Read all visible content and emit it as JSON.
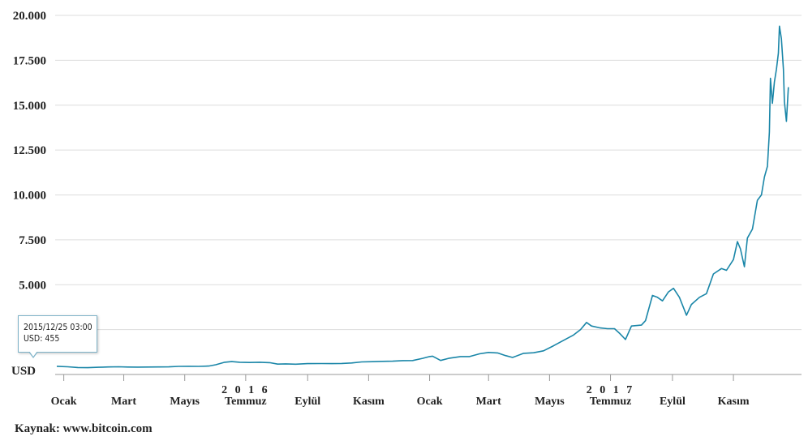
{
  "chart_data": {
    "type": "line",
    "unit": "USD",
    "ylim": [
      0,
      20000
    ],
    "yticks": [
      {
        "value": 0,
        "label": ""
      },
      {
        "value": 2500,
        "label": ""
      },
      {
        "value": 5000,
        "label": "5.000"
      },
      {
        "value": 7500,
        "label": "7.500"
      },
      {
        "value": 10000,
        "label": "10.000"
      },
      {
        "value": 12500,
        "label": "12.500"
      },
      {
        "value": 15000,
        "label": "15.000"
      },
      {
        "value": 17500,
        "label": "17.500"
      },
      {
        "value": 20000,
        "label": "20.000"
      }
    ],
    "xlim": [
      "2015-12-25",
      "2017-12-31"
    ],
    "xticks": [
      {
        "date": "2016-01-01",
        "label": "Ocak"
      },
      {
        "date": "2016-03-01",
        "label": "Mart"
      },
      {
        "date": "2016-05-01",
        "label": "Mayıs"
      },
      {
        "date": "2016-07-01",
        "label": "Temmuz"
      },
      {
        "date": "2016-09-01",
        "label": "Eylül"
      },
      {
        "date": "2016-11-01",
        "label": "Kasım"
      },
      {
        "date": "2017-01-01",
        "label": "Ocak"
      },
      {
        "date": "2017-03-01",
        "label": "Mart"
      },
      {
        "date": "2017-05-01",
        "label": "Mayıs"
      },
      {
        "date": "2017-07-01",
        "label": "Temmuz"
      },
      {
        "date": "2017-09-01",
        "label": "Eylül"
      },
      {
        "date": "2017-11-01",
        "label": "Kasım"
      }
    ],
    "year_labels": [
      {
        "date": "2016-07-01",
        "label": "2 0 1 6"
      },
      {
        "date": "2017-07-01",
        "label": "2 0 1 7"
      }
    ],
    "grid": true,
    "line_color": "#1a86a8",
    "series": [
      {
        "x": [
          "2015-12-25",
          "2016-01-05",
          "2016-01-15",
          "2016-01-25",
          "2016-02-05",
          "2016-02-15",
          "2016-02-25",
          "2016-03-05",
          "2016-03-15",
          "2016-03-25",
          "2016-04-05",
          "2016-04-15",
          "2016-04-25",
          "2016-05-05",
          "2016-05-15",
          "2016-05-25",
          "2016-06-01",
          "2016-06-10",
          "2016-06-17",
          "2016-06-25",
          "2016-07-05",
          "2016-07-15",
          "2016-07-25",
          "2016-08-02",
          "2016-08-10",
          "2016-08-20",
          "2016-09-01",
          "2016-09-15",
          "2016-09-25",
          "2016-10-05",
          "2016-10-15",
          "2016-10-25",
          "2016-11-05",
          "2016-11-15",
          "2016-11-25",
          "2016-12-05",
          "2016-12-15",
          "2016-12-25",
          "2017-01-01",
          "2017-01-04",
          "2017-01-08",
          "2017-01-12",
          "2017-01-20",
          "2017-02-01",
          "2017-02-10",
          "2017-02-20",
          "2017-03-01",
          "2017-03-10",
          "2017-03-18",
          "2017-03-25",
          "2017-04-05",
          "2017-04-15",
          "2017-04-25",
          "2017-05-05",
          "2017-05-15",
          "2017-05-25",
          "2017-06-01",
          "2017-06-07",
          "2017-06-12",
          "2017-06-20",
          "2017-06-28",
          "2017-07-05",
          "2017-07-10",
          "2017-07-16",
          "2017-07-22",
          "2017-08-01",
          "2017-08-05",
          "2017-08-12",
          "2017-08-17",
          "2017-08-22",
          "2017-08-28",
          "2017-09-02",
          "2017-09-08",
          "2017-09-15",
          "2017-09-20",
          "2017-09-28",
          "2017-10-05",
          "2017-10-12",
          "2017-10-20",
          "2017-10-25",
          "2017-11-01",
          "2017-11-05",
          "2017-11-08",
          "2017-11-12",
          "2017-11-15",
          "2017-11-20",
          "2017-11-25",
          "2017-11-29",
          "2017-12-02",
          "2017-12-05",
          "2017-12-07",
          "2017-12-08",
          "2017-12-10",
          "2017-12-12",
          "2017-12-14",
          "2017-12-16",
          "2017-12-17",
          "2017-12-19",
          "2017-12-21",
          "2017-12-22",
          "2017-12-24",
          "2017-12-26"
        ],
        "y": [
          455,
          430,
          390,
          380,
          400,
          420,
          430,
          415,
          410,
          415,
          420,
          425,
          450,
          455,
          450,
          470,
          540,
          680,
          720,
          680,
          670,
          680,
          660,
          580,
          590,
          575,
          605,
          610,
          605,
          615,
          640,
          700,
          715,
          730,
          740,
          770,
          775,
          900,
          1000,
          1020,
          900,
          780,
          900,
          1000,
          1000,
          1150,
          1230,
          1200,
          1050,
          950,
          1180,
          1210,
          1320,
          1600,
          1900,
          2200,
          2500,
          2900,
          2700,
          2600,
          2550,
          2550,
          2300,
          1950,
          2700,
          2750,
          3000,
          4400,
          4300,
          4100,
          4600,
          4800,
          4300,
          3300,
          3900,
          4300,
          4500,
          5600,
          5900,
          5800,
          6400,
          7400,
          7000,
          6000,
          7600,
          8100,
          9700,
          10000,
          11000,
          11600,
          13500,
          16500,
          15100,
          16300,
          17000,
          17900,
          19400,
          18700,
          17000,
          15200,
          14100,
          16000
        ]
      }
    ],
    "tooltip": {
      "date": "2015/12/25 03:00",
      "value": "USD: 455"
    }
  },
  "source_text": "Kaynak: www.bitcoin.com"
}
